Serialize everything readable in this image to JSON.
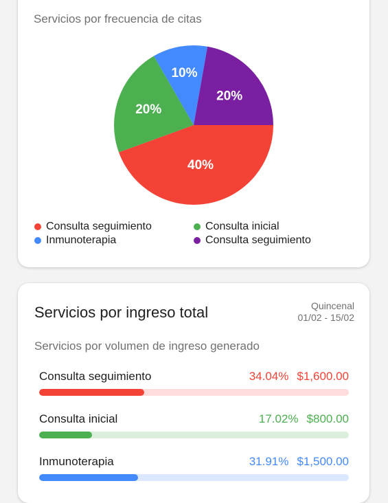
{
  "frequency_card": {
    "subtitle": "Servicios por frecuencia de citas",
    "chart_data": {
      "type": "pie",
      "slices": [
        {
          "name": "Consulta seguimiento",
          "value": 40,
          "label": "40%",
          "color": "#f44336"
        },
        {
          "name": "Consulta inicial",
          "value": 20,
          "label": "20%",
          "color": "#4caf50"
        },
        {
          "name": "Inmunoterapia",
          "value": 10,
          "label": "10%",
          "color": "#448aff"
        },
        {
          "name": "Consulta seguimiento",
          "value": 20,
          "label": "20%",
          "color": "#7b1fa2"
        }
      ]
    },
    "legend": [
      {
        "label": "Consulta seguimiento",
        "color": "#f44336"
      },
      {
        "label": "Consulta inicial",
        "color": "#4caf50"
      },
      {
        "label": "Inmunoterapia",
        "color": "#448aff"
      },
      {
        "label": "Consulta seguimiento",
        "color": "#7b1fa2"
      }
    ]
  },
  "revenue_card": {
    "title": "Servicios por ingreso total",
    "period_label": "Quincenal",
    "period_range": "01/02 - 15/02",
    "subtitle": "Servicios por volumen de ingreso generado",
    "services": [
      {
        "name": "Consulta seguimiento",
        "percent": "34.04%",
        "amount": "$1,600.00",
        "progress": 0.34,
        "color": "#f44336",
        "track": "#fddcdb"
      },
      {
        "name": "Consulta inicial",
        "percent": "17.02%",
        "amount": "$800.00",
        "progress": 0.17,
        "color": "#4caf50",
        "track": "#dcefdd"
      },
      {
        "name": "Inmunoterapia",
        "percent": "31.91%",
        "amount": "$1,500.00",
        "progress": 0.32,
        "color": "#448aff",
        "track": "#dbe8ff"
      }
    ]
  }
}
